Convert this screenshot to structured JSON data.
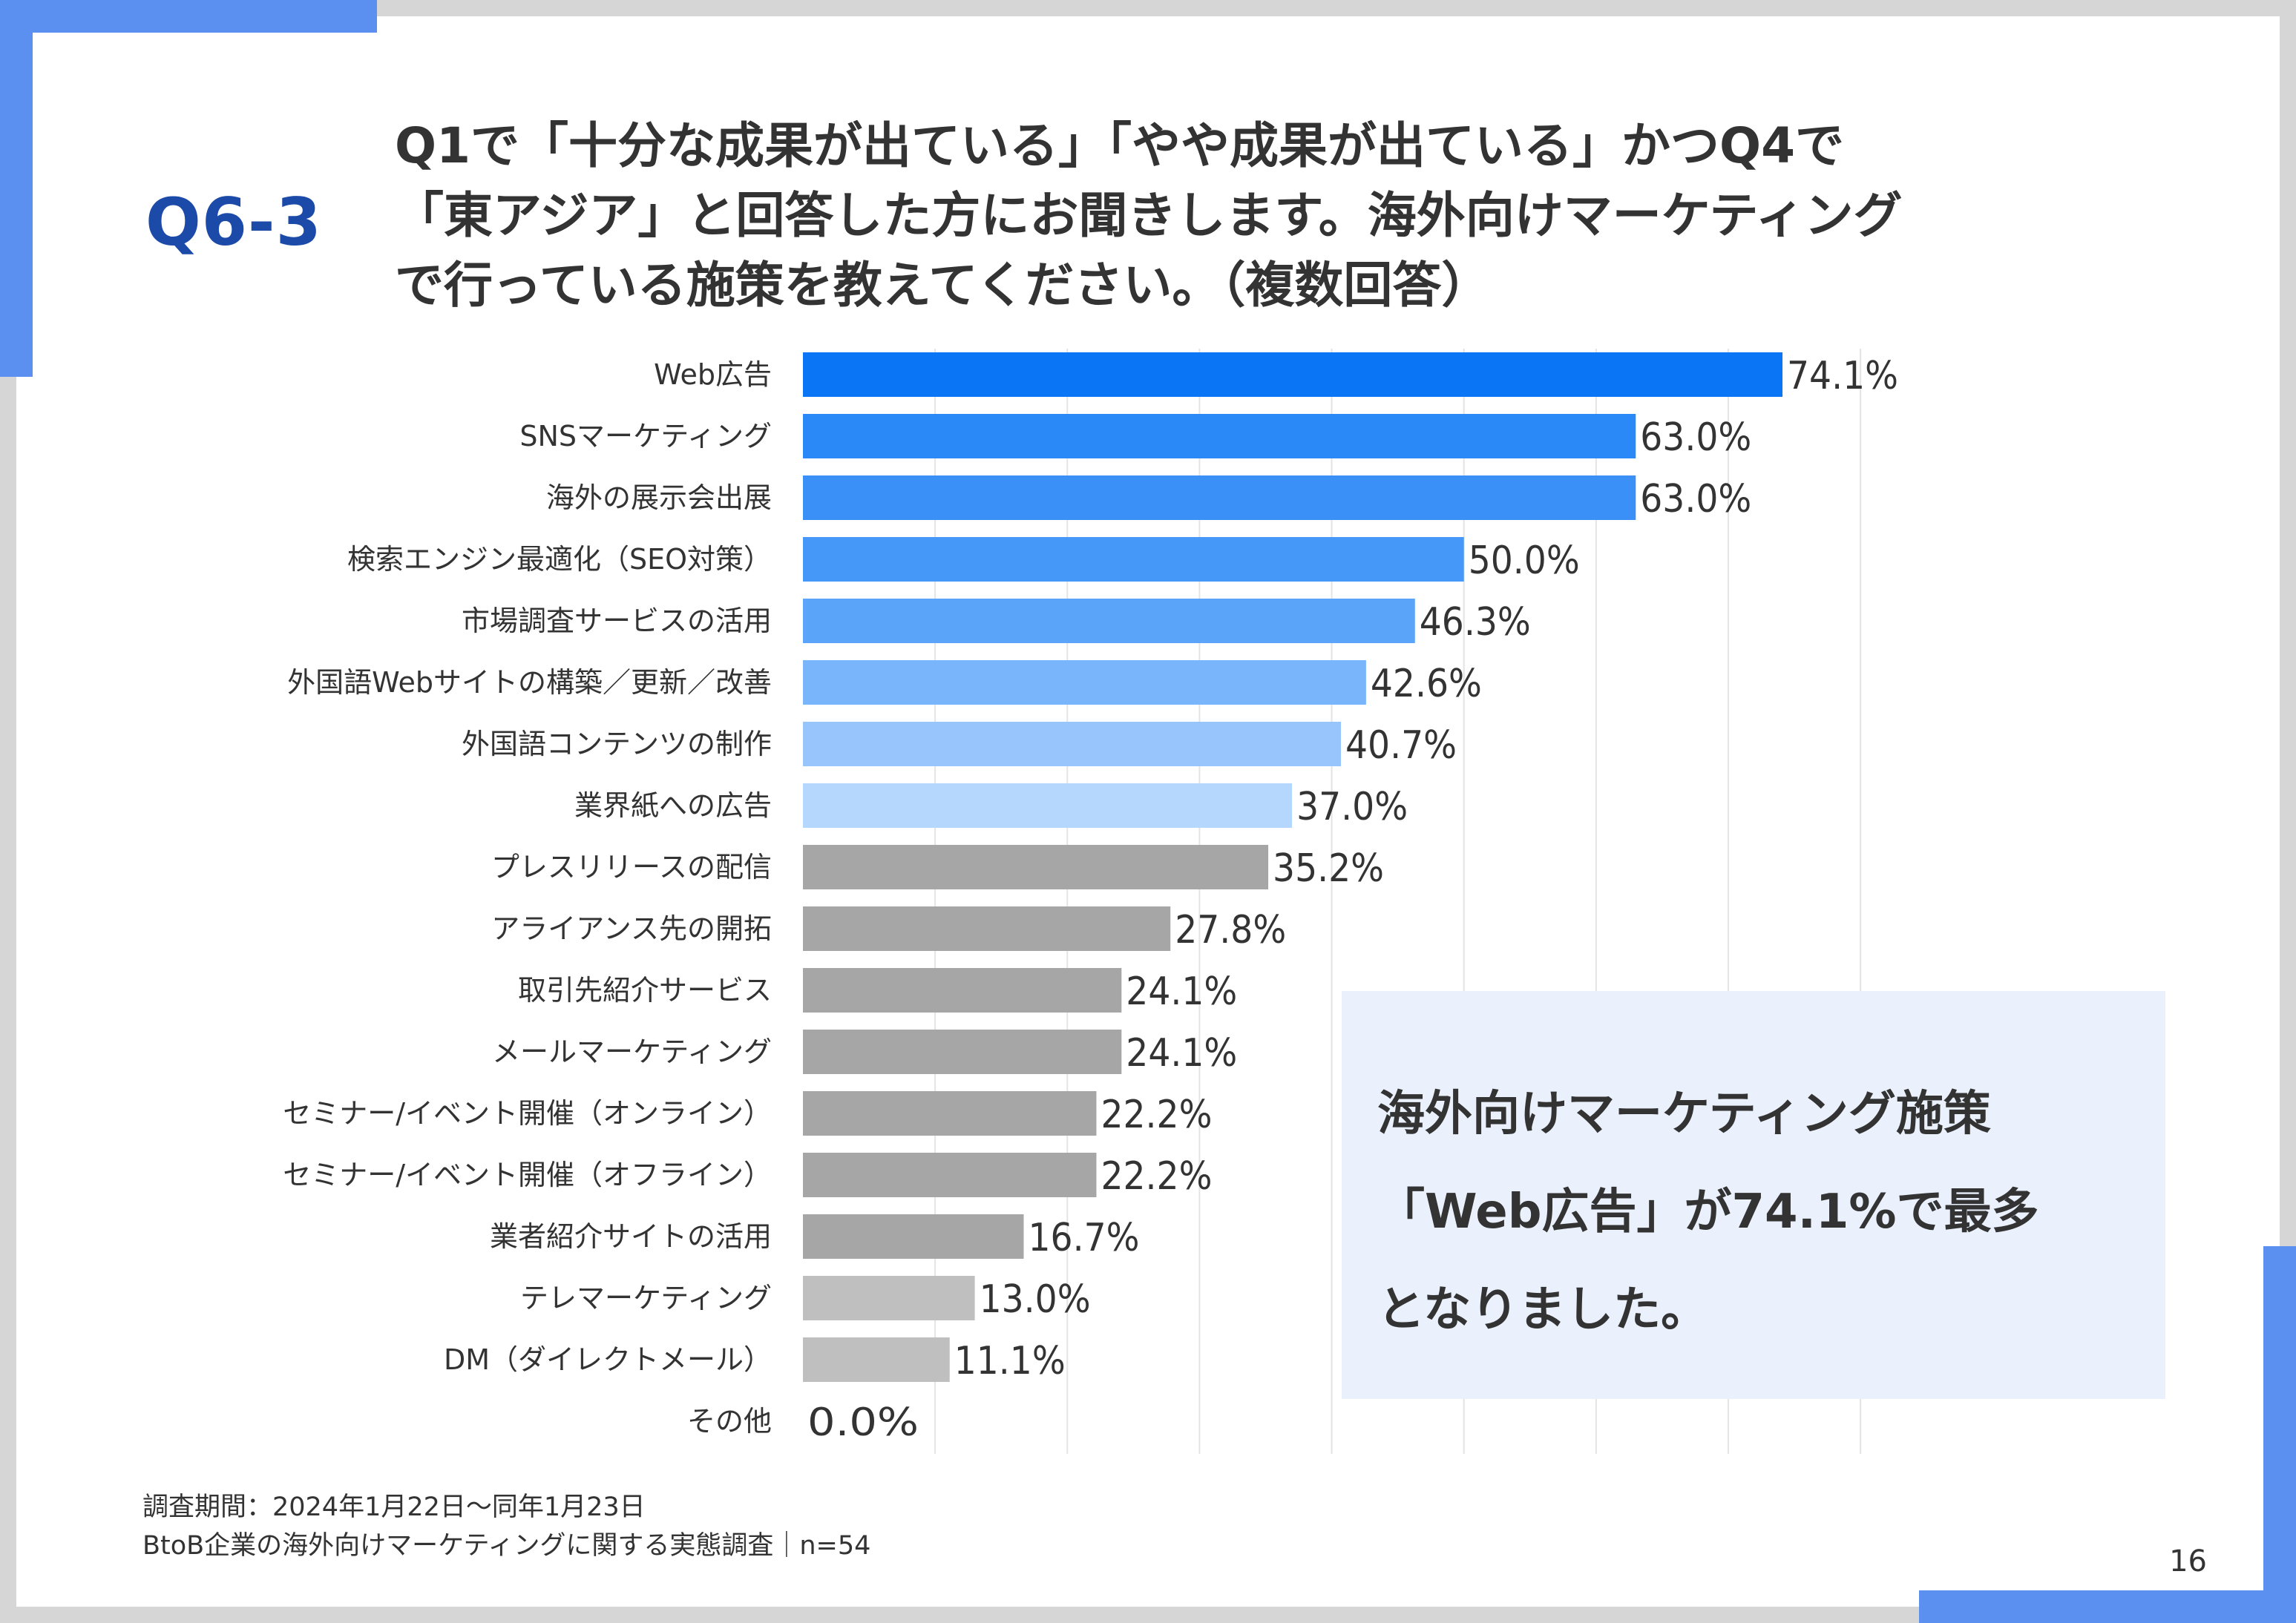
{
  "slide": {
    "question_id": "Q6-3",
    "title_lines": [
      "Q1で「十分な成果が出ている」「やや成果が出ている」かつQ4で",
      "「東アジア」と回答した方にお聞きします。海外向けマーケティング",
      "で行っている施策を教えてください。（複数回答）"
    ],
    "callout_lines": [
      "海外向けマーケティング施策",
      "「Web広告」が74.1%で最多",
      "となりました。"
    ],
    "footnote_lines": [
      "調査期間：2024年1月22日～同年1月23日",
      "BtoB企業の海外向けマーケティングに関する実態調査｜n=54"
    ],
    "page_number": "16",
    "colors": {
      "accent": "#5b8ff0",
      "question_label": "#1b4aa8",
      "callout_bg": "#eaf1fc"
    }
  },
  "chart_data": {
    "type": "bar",
    "orientation": "horizontal",
    "unit": "%",
    "xlim": [
      0,
      80
    ],
    "grid": true,
    "categories": [
      "Web広告",
      "SNSマーケティング",
      "海外の展示会出展",
      "検索エンジン最適化（SEO対策）",
      "市場調査サービスの活用",
      "外国語Webサイトの構築／更新／改善",
      "外国語コンテンツの制作",
      "業界紙への広告",
      "プレスリリースの配信",
      "アライアンス先の開拓",
      "取引先紹介サービス",
      "メールマーケティング",
      "セミナー/イベント開催（オンライン）",
      "セミナー/イベント開催（オフライン）",
      "業者紹介サイトの活用",
      "テレマーケティング",
      "DM（ダイレクトメール）",
      "その他"
    ],
    "values": [
      74.1,
      63.0,
      63.0,
      50.0,
      46.3,
      42.6,
      40.7,
      37.0,
      35.2,
      27.8,
      24.1,
      24.1,
      22.2,
      22.2,
      16.7,
      13.0,
      11.1,
      0.0
    ],
    "value_labels": [
      "74.1%",
      "63.0%",
      "63.0%",
      "50.0%",
      "46.3%",
      "42.6%",
      "40.7%",
      "37.0%",
      "35.2%",
      "27.8%",
      "24.1%",
      "24.1%",
      "22.2%",
      "22.2%",
      "16.7%",
      "13.0%",
      "11.1%",
      "0.0%"
    ],
    "bar_colors": [
      "#0a75f5",
      "#2b88f7",
      "#3b90f8",
      "#4597f8",
      "#5aa4fa",
      "#78b5fb",
      "#98c6fc",
      "#b5d6fd",
      "#a6a6a6",
      "#a6a6a6",
      "#a6a6a6",
      "#a6a6a6",
      "#a6a6a6",
      "#a6a6a6",
      "#a6a6a6",
      "#bfbfbf",
      "#bfbfbf",
      "#bfbfbf"
    ]
  }
}
